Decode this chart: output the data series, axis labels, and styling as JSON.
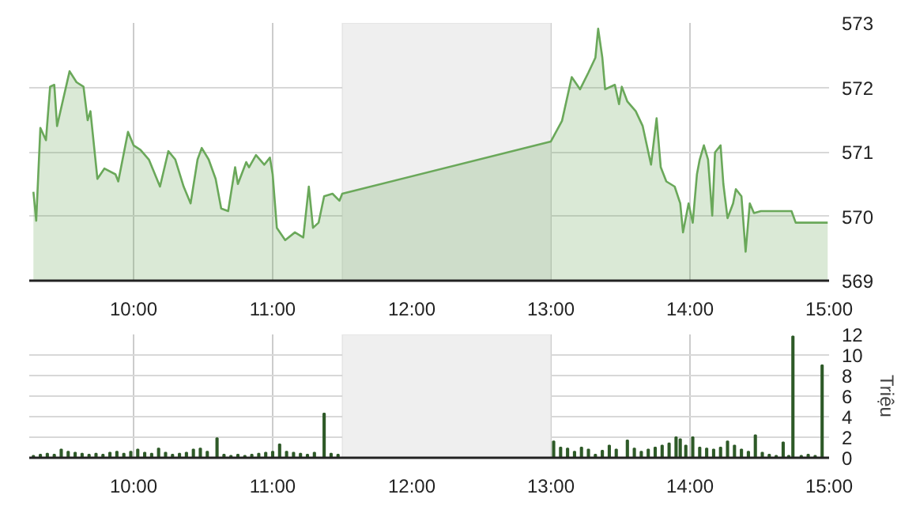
{
  "chart_data": [
    {
      "type": "area",
      "color": "#6aa85a",
      "grid": true,
      "xlim": [
        9.25,
        15
      ],
      "ylim": [
        569,
        573
      ],
      "yticks": [
        569,
        570,
        571,
        572,
        573
      ],
      "xticks": [
        {
          "value": 10,
          "label": "10:00"
        },
        {
          "value": 11,
          "label": "11:00"
        },
        {
          "value": 12,
          "label": "12:00"
        },
        {
          "value": 13,
          "label": "13:00"
        },
        {
          "value": 14,
          "label": "14:00"
        },
        {
          "value": 15,
          "label": "15:00"
        }
      ],
      "bands": [
        {
          "axis": "x",
          "from": 11.5,
          "to": 13,
          "label": null,
          "color": "#efefef"
        }
      ],
      "x": [
        9.28,
        9.3,
        9.33,
        9.37,
        9.4,
        9.43,
        9.45,
        9.49,
        9.54,
        9.59,
        9.64,
        9.67,
        9.69,
        9.74,
        9.79,
        9.87,
        9.89,
        9.96,
        10.0,
        10.05,
        10.11,
        10.19,
        10.25,
        10.3,
        10.36,
        10.41,
        10.46,
        10.49,
        10.54,
        10.59,
        10.63,
        10.68,
        10.73,
        10.75,
        10.81,
        10.83,
        10.88,
        10.94,
        10.98,
        11.0,
        11.03,
        11.09,
        11.16,
        11.22,
        11.26,
        11.29,
        11.33,
        11.37,
        11.43,
        11.48,
        11.5,
        13.0,
        13.08,
        13.15,
        13.21,
        13.27,
        13.32,
        13.34,
        13.37,
        13.39,
        13.46,
        13.49,
        13.51,
        13.55,
        13.61,
        13.66,
        13.72,
        13.76,
        13.79,
        13.83,
        13.89,
        13.93,
        13.95,
        13.99,
        14.02,
        14.05,
        14.07,
        14.1,
        14.13,
        14.16,
        14.18,
        14.22,
        14.24,
        14.27,
        14.31,
        14.33,
        14.37,
        14.4,
        14.43,
        14.46,
        14.51,
        14.73,
        14.76,
        14.99
      ],
      "values": [
        570.38,
        569.93,
        571.37,
        571.18,
        572.01,
        572.04,
        571.4,
        571.78,
        572.25,
        572.08,
        572.01,
        571.49,
        571.63,
        570.58,
        570.74,
        570.65,
        570.54,
        571.31,
        571.1,
        571.03,
        570.88,
        570.46,
        571.01,
        570.88,
        570.46,
        570.2,
        570.88,
        571.06,
        570.88,
        570.58,
        570.12,
        570.08,
        570.76,
        570.5,
        570.84,
        570.76,
        570.95,
        570.8,
        570.91,
        570.65,
        569.82,
        569.63,
        569.75,
        569.67,
        570.46,
        569.82,
        569.9,
        570.31,
        570.35,
        570.24,
        570.35,
        571.16,
        571.48,
        572.16,
        571.97,
        572.23,
        572.46,
        572.91,
        572.46,
        571.97,
        572.04,
        571.74,
        572.01,
        571.78,
        571.63,
        571.4,
        570.8,
        571.52,
        570.76,
        570.54,
        570.46,
        570.2,
        569.75,
        570.2,
        569.9,
        570.65,
        570.88,
        571.1,
        570.88,
        570.01,
        570.99,
        571.1,
        570.5,
        569.97,
        570.2,
        570.42,
        570.31,
        569.45,
        570.2,
        570.05,
        570.08,
        570.08,
        569.9,
        569.9
      ]
    },
    {
      "type": "bar",
      "color": "#2e5a28",
      "grid": true,
      "ylabel": "Triệu",
      "xlim": [
        9.25,
        15
      ],
      "ylim": [
        0,
        12
      ],
      "yticks": [
        0,
        2,
        4,
        6,
        8,
        10,
        12
      ],
      "xticks": [
        {
          "value": 10,
          "label": "10:00"
        },
        {
          "value": 11,
          "label": "11:00"
        },
        {
          "value": 12,
          "label": "12:00"
        },
        {
          "value": 13,
          "label": "13:00"
        },
        {
          "value": 14,
          "label": "14:00"
        },
        {
          "value": 15,
          "label": "15:00"
        }
      ],
      "bands": [
        {
          "axis": "x",
          "from": 11.5,
          "to": 13,
          "label": null,
          "color": "#efefef"
        }
      ],
      "x": [
        9.28,
        9.33,
        9.38,
        9.43,
        9.48,
        9.53,
        9.58,
        9.63,
        9.68,
        9.73,
        9.78,
        9.83,
        9.88,
        9.93,
        9.98,
        10.03,
        10.08,
        10.13,
        10.18,
        10.23,
        10.28,
        10.33,
        10.38,
        10.43,
        10.48,
        10.53,
        10.6,
        10.65,
        10.7,
        10.75,
        10.8,
        10.85,
        10.9,
        10.95,
        11.0,
        11.05,
        11.1,
        11.15,
        11.2,
        11.25,
        11.3,
        11.37,
        11.42,
        11.47,
        13.02,
        13.07,
        13.12,
        13.17,
        13.22,
        13.27,
        13.32,
        13.37,
        13.42,
        13.47,
        13.55,
        13.6,
        13.65,
        13.7,
        13.75,
        13.8,
        13.85,
        13.9,
        13.93,
        13.97,
        14.02,
        14.07,
        14.12,
        14.17,
        14.22,
        14.27,
        14.32,
        14.37,
        14.42,
        14.47,
        14.52,
        14.57,
        14.62,
        14.67,
        14.71,
        14.74,
        14.8,
        14.85,
        14.9,
        14.95
      ],
      "values": [
        0.2,
        0.3,
        0.4,
        0.3,
        0.8,
        0.6,
        0.5,
        0.4,
        0.3,
        0.4,
        0.3,
        0.5,
        0.6,
        0.4,
        0.6,
        0.8,
        0.5,
        0.4,
        0.9,
        0.5,
        0.3,
        0.4,
        0.5,
        0.8,
        0.9,
        0.6,
        1.9,
        0.3,
        0.2,
        0.3,
        0.2,
        0.3,
        0.4,
        0.5,
        0.6,
        1.3,
        0.6,
        0.5,
        0.4,
        0.3,
        0.5,
        4.3,
        0.4,
        0.3,
        1.6,
        1.0,
        0.9,
        0.6,
        1.0,
        0.8,
        0.3,
        0.7,
        1.2,
        0.8,
        1.7,
        0.9,
        0.6,
        0.8,
        1.0,
        1.2,
        1.4,
        2.0,
        1.8,
        1.2,
        2.0,
        1.0,
        0.9,
        0.8,
        1.0,
        1.6,
        1.2,
        0.8,
        0.6,
        2.2,
        0.5,
        0.3,
        0.2,
        1.5,
        0.2,
        11.8,
        0.2,
        0.3,
        0.2,
        9.0
      ]
    }
  ]
}
